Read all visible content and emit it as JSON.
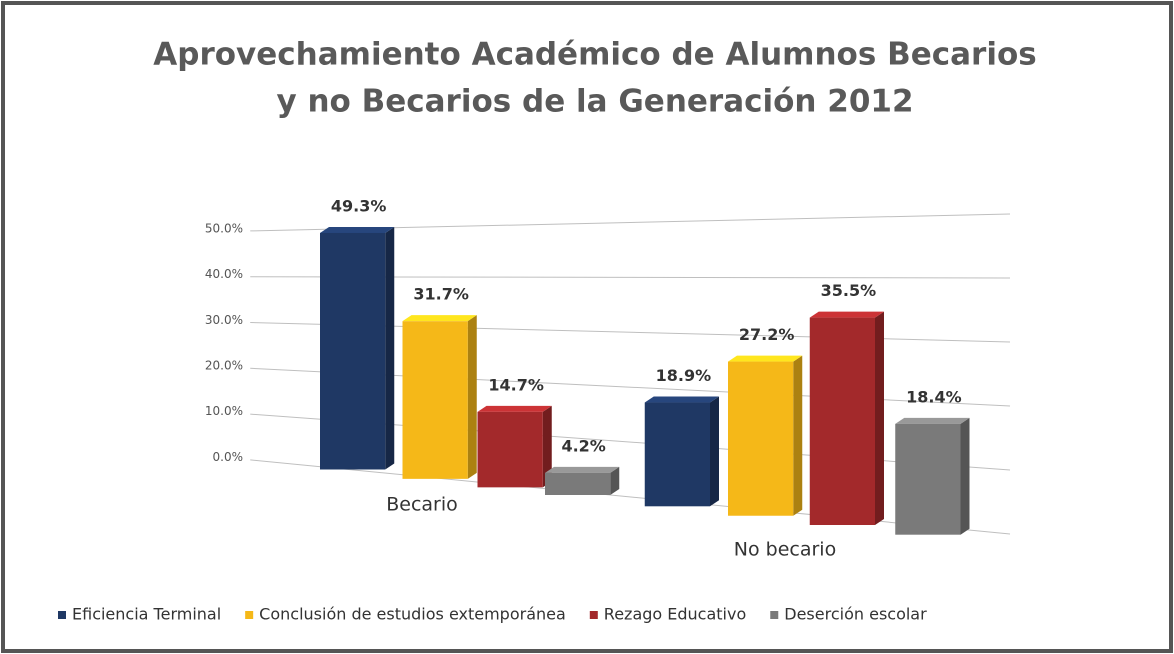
{
  "chart_data": {
    "type": "bar3d",
    "title": [
      "Aprovechamiento Académico de Alumnos Becarios",
      "y no Becarios de la Generación 2012"
    ],
    "categories": [
      "Becario",
      "No becario"
    ],
    "series": [
      {
        "name": "Eficiencia Terminal",
        "color": "#1f3864",
        "values": [
          49.3,
          18.9
        ],
        "value_labels": [
          "49.3%",
          "18.9%"
        ]
      },
      {
        "name": "Conclusión de estudios extemporánea",
        "color": "#f5b818",
        "values": [
          31.7,
          27.2
        ],
        "value_labels": [
          "31.7%",
          "27.2%"
        ]
      },
      {
        "name": "Rezago Educativo",
        "color": "#a3292b",
        "values": [
          14.7,
          35.5
        ],
        "value_labels": [
          "14.7%",
          "35.5%"
        ]
      },
      {
        "name": "Deserción escolar",
        "color": "#7a7a7a",
        "values": [
          4.2,
          18.4
        ],
        "value_labels": [
          "4.2%",
          "18.4%"
        ]
      }
    ],
    "ylim": [
      0,
      50
    ],
    "yticks": [
      {
        "value": 0,
        "label": "0.0%"
      },
      {
        "value": 10,
        "label": "10.0%"
      },
      {
        "value": 20,
        "label": "20.0%"
      },
      {
        "value": 30,
        "label": "30.0%"
      },
      {
        "value": 40,
        "label": "40.0%"
      },
      {
        "value": 50,
        "label": "50.0%"
      }
    ],
    "grid": true,
    "legend": "bottom"
  }
}
